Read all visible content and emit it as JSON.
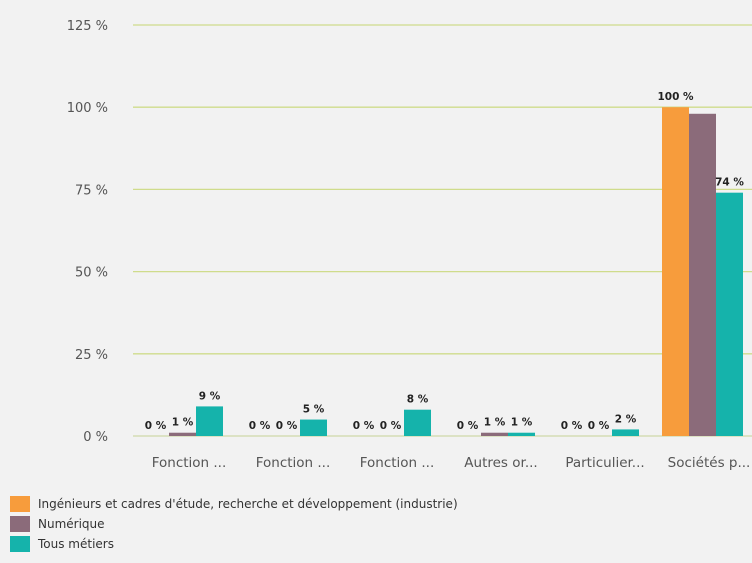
{
  "chart_data": {
    "type": "bar",
    "categories": [
      "Fonction ...",
      "Fonction ...",
      "Fonction ...",
      "Autres or...",
      "Particulier...",
      "Sociétés p..."
    ],
    "series": [
      {
        "name": "Ingénieurs et cadres d'étude, recherche et développement (industrie)",
        "color": "#f79c3c",
        "values": [
          0,
          0,
          0,
          0,
          0,
          100
        ],
        "labels": [
          "0 %",
          "0 %",
          "0 %",
          "0 %",
          "0 %",
          "100 %"
        ]
      },
      {
        "name": "Numérique",
        "color": "#8b6b7a",
        "values": [
          1,
          0,
          0,
          1,
          0,
          98
        ],
        "labels": [
          "1 %",
          "0 %",
          "0 %",
          "1 %",
          "0 %",
          ""
        ]
      },
      {
        "name": "Tous métiers",
        "color": "#15b3ab",
        "values": [
          9,
          5,
          8,
          1,
          2,
          74
        ],
        "labels": [
          "9 %",
          "5 %",
          "8 %",
          "1 %",
          "2 %",
          "74 %"
        ]
      }
    ],
    "y_ticks": [
      "0 %",
      "25 %",
      "50 %",
      "75 %",
      "100 %",
      "125 %"
    ],
    "ylim": [
      0,
      125
    ],
    "grid": true,
    "legend_position": "bottom-left"
  }
}
